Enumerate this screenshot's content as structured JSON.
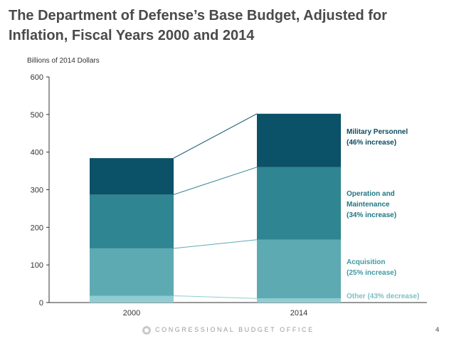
{
  "header": {
    "title_line1": "The Department of Defense’s Base Budget, Adjusted for",
    "title_line2": "Inflation, Fiscal Years 2000 and 2014"
  },
  "footer": {
    "org": "CONGRESSIONAL BUDGET OFFICE",
    "page": "4"
  },
  "chart_data": {
    "type": "bar",
    "stacked": true,
    "title": "The Department of Defense’s Base Budget, Adjusted for Inflation, Fiscal Years 2000 and 2014",
    "ylabel": "Billions of 2014 Dollars",
    "xlabel": "",
    "ylim": [
      0,
      600
    ],
    "yticks": [
      "0",
      "100",
      "200",
      "300",
      "400",
      "500",
      "600"
    ],
    "categories": [
      "2000",
      "2014"
    ],
    "series": [
      {
        "name": "Other",
        "values": [
          18,
          11
        ],
        "color": "#8fcdd2",
        "label_lines": [
          "Other (43% decrease)"
        ],
        "label_color": "#7fbfc6"
      },
      {
        "name": "Acquisition",
        "values": [
          126,
          156
        ],
        "color": "#5eaab3",
        "label_lines": [
          "Acquisition",
          "(25% increase)"
        ],
        "label_color": "#3f9aa4"
      },
      {
        "name": "Operation and Maintenance",
        "values": [
          143,
          193
        ],
        "color": "#2f8591",
        "label_lines": [
          "Operation and",
          "Maintenance",
          "(34% increase)"
        ],
        "label_color": "#1f7784"
      },
      {
        "name": "Military Personnel",
        "values": [
          97,
          142
        ],
        "color": "#0b5168",
        "label_lines": [
          "Military Personnel",
          "(46% increase)"
        ],
        "label_color": "#0b4a61"
      }
    ]
  }
}
